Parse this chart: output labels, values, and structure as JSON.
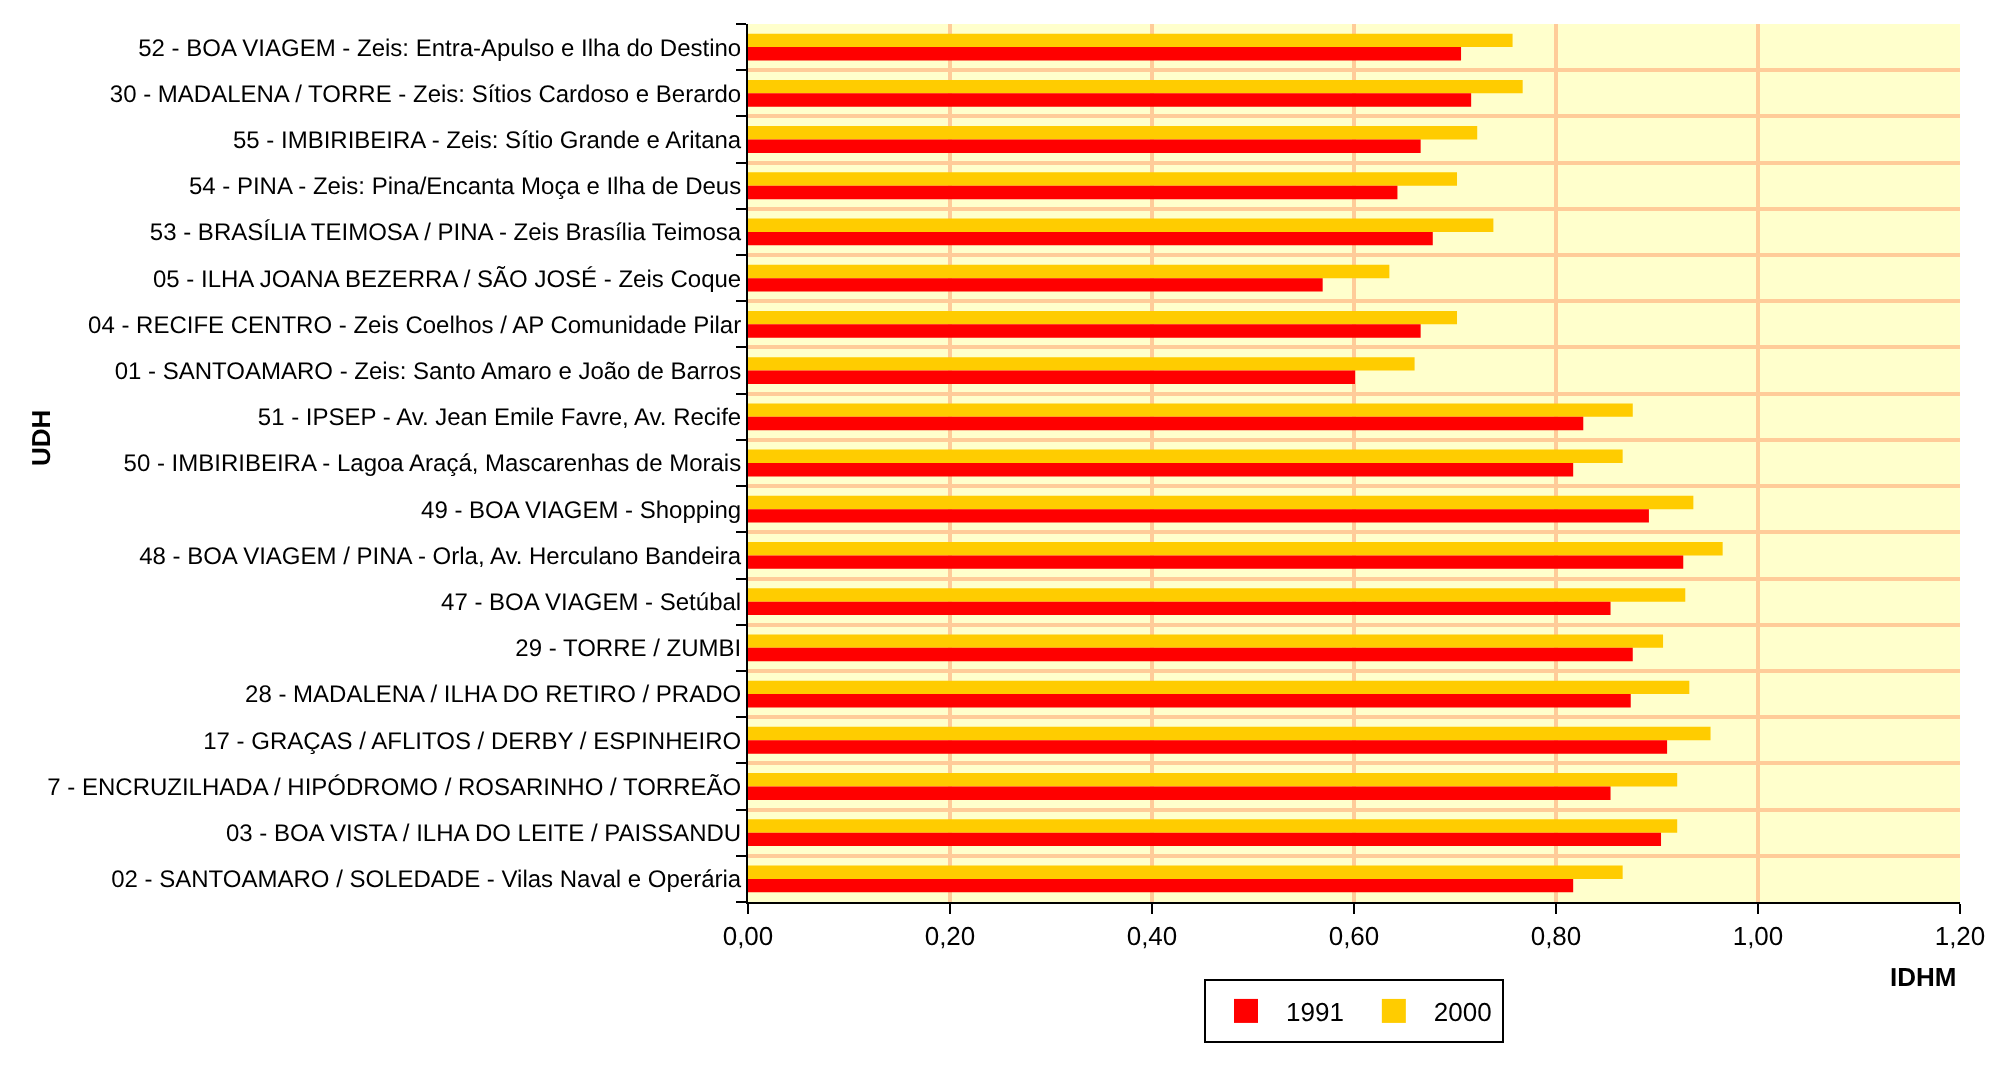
{
  "chart_data": {
    "type": "bar",
    "orientation": "horizontal",
    "xlabel": "IDHM",
    "ylabel": "UDH",
    "categories": [
      "52 - BOA VIAGEM - Zeis: Entra-Apulso e Ilha do Destino",
      "30 - MADALENA / TORRE - Zeis: Sítios Cardoso e Berardo",
      "55 - IMBIRIBEIRA - Zeis: Sítio Grande e Aritana",
      "54 - PINA - Zeis: Pina/Encanta Moça e Ilha de Deus",
      "53 - BRASÍLIA TEIMOSA / PINA - Zeis Brasília Teimosa",
      "05 - ILHA JOANA BEZERRA / SÃO JOSÉ - Zeis Coque",
      "04 - RECIFE CENTRO - Zeis Coelhos / AP Comunidade Pilar",
      "01 - SANTOAMARO - Zeis: Santo Amaro e João de Barros",
      "51 - IPSEP - Av. Jean Emile Favre, Av. Recife",
      "50 - IMBIRIBEIRA - Lagoa Araçá, Mascarenhas de Morais",
      "49 - BOA VIAGEM - Shopping",
      "48 - BOA VIAGEM / PINA - Orla, Av. Herculano Bandeira",
      "47 - BOA VIAGEM - Setúbal",
      "29 - TORRE / ZUMBI",
      "28 - MADALENA / ILHA DO RETIRO / PRADO",
      "17 - GRAÇAS / AFLITOS / DERBY / ESPINHEIRO",
      "7 - ENCRUZILHADA / HIPÓDROMO / ROSARINHO / TORREÃO",
      "03 - BOA VISTA / ILHA DO LEITE / PAISSANDU",
      "02 - SANTOAMARO / SOLEDADE - Vilas Naval e Operária"
    ],
    "series": [
      {
        "name": "1991",
        "color": "#ff0000",
        "values": [
          0.706,
          0.716,
          0.666,
          0.643,
          0.678,
          0.569,
          0.666,
          0.601,
          0.827,
          0.817,
          0.892,
          0.926,
          0.854,
          0.876,
          0.874,
          0.91,
          0.854,
          0.904,
          0.817
        ]
      },
      {
        "name": "2000",
        "color": "#ffcc00",
        "values": [
          0.757,
          0.767,
          0.722,
          0.702,
          0.738,
          0.635,
          0.702,
          0.66,
          0.876,
          0.866,
          0.936,
          0.965,
          0.928,
          0.906,
          0.932,
          0.953,
          0.92,
          0.92,
          0.866
        ]
      }
    ],
    "xlim": [
      0,
      1.2
    ],
    "xticks": [
      {
        "value": 0,
        "label": "0,00"
      },
      {
        "value": 0.2,
        "label": "0,20"
      },
      {
        "value": 0.4,
        "label": "0,40"
      },
      {
        "value": 0.6,
        "label": "0,60"
      },
      {
        "value": 0.8,
        "label": "0,80"
      },
      {
        "value": 1.0,
        "label": "1,00"
      },
      {
        "value": 1.2,
        "label": "1,20"
      }
    ],
    "grid": true,
    "legend": "bottom"
  }
}
